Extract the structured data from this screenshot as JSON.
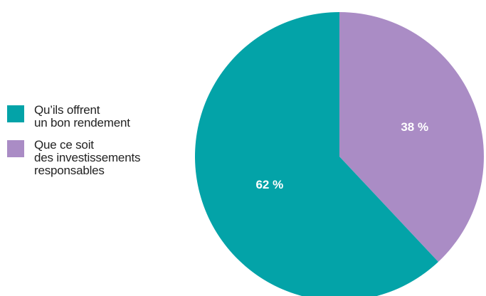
{
  "chart_data": {
    "type": "pie",
    "categories": [
      "Qu’ils offrent un bon rendement",
      "Que ce soit des investissements responsables"
    ],
    "values": [
      62,
      38
    ],
    "data_labels": [
      "62 %",
      "38 %"
    ],
    "colors": [
      "#03A3A8",
      "#AA8CC5"
    ],
    "legend_placement": "left"
  },
  "legend": {
    "items": [
      {
        "lines": [
          "Qu’ils offrent",
          "un bon rendement"
        ],
        "color": "#03A3A8"
      },
      {
        "lines": [
          "Que ce soit",
          "des investissements",
          "responsables"
        ],
        "color": "#AA8CC5"
      }
    ]
  }
}
